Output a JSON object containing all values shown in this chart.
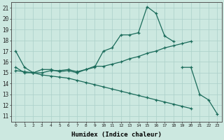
{
  "xlabel": "Humidex (Indice chaleur)",
  "background_color": "#cce8e0",
  "grid_color": "#aacfc8",
  "line_color": "#1a6b5a",
  "xlim": [
    -0.5,
    23.5
  ],
  "ylim": [
    10.5,
    21.5
  ],
  "xticks": [
    0,
    1,
    2,
    3,
    4,
    5,
    6,
    7,
    8,
    9,
    10,
    11,
    12,
    13,
    14,
    15,
    16,
    17,
    18,
    19,
    20,
    21,
    22,
    23
  ],
  "yticks": [
    11,
    12,
    13,
    14,
    15,
    16,
    17,
    18,
    19,
    20,
    21
  ],
  "line1_x": [
    0,
    1,
    2,
    3,
    4,
    5,
    6,
    7,
    8,
    9,
    10,
    11,
    12,
    13,
    14,
    15,
    16,
    17,
    18
  ],
  "line1_y": [
    17.0,
    15.5,
    15.0,
    15.3,
    15.3,
    15.1,
    15.2,
    15.0,
    15.3,
    15.5,
    17.0,
    17.3,
    18.5,
    18.5,
    18.7,
    21.1,
    20.5,
    18.4,
    17.9
  ],
  "line2_x": [
    19,
    20,
    21,
    22,
    23
  ],
  "line2_y": [
    15.5,
    15.5,
    13.0,
    12.5,
    11.2
  ],
  "line3_x": [
    0,
    1,
    2,
    3,
    4,
    5,
    6,
    7,
    8,
    9,
    10,
    11,
    12,
    13,
    14,
    15,
    16,
    17,
    18,
    19,
    20
  ],
  "line3_y": [
    15.2,
    15.1,
    15.0,
    15.0,
    15.2,
    15.2,
    15.3,
    15.1,
    15.3,
    15.6,
    15.6,
    15.8,
    16.0,
    16.3,
    16.5,
    16.8,
    17.0,
    17.3,
    17.5,
    17.7,
    17.9
  ],
  "line4_x": [
    0,
    1,
    2,
    3,
    4,
    5,
    6,
    7,
    8,
    9,
    10,
    11,
    12,
    13,
    14,
    15,
    16,
    17,
    18,
    19,
    20
  ],
  "line4_y": [
    15.5,
    15.0,
    15.0,
    14.8,
    14.7,
    14.6,
    14.5,
    14.3,
    14.1,
    13.9,
    13.7,
    13.5,
    13.3,
    13.1,
    12.9,
    12.7,
    12.5,
    12.3,
    12.1,
    11.9,
    11.7
  ]
}
